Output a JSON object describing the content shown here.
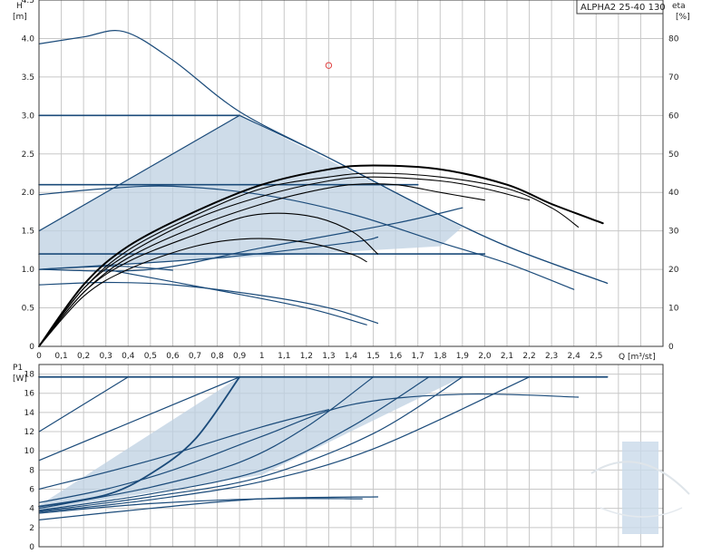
{
  "chart_data": [
    {
      "type": "line",
      "title": "ALPHA2 25-40 130",
      "ylabel": "H",
      "yunit": "[m]",
      "y2label": "eta",
      "y2unit": "[%]",
      "xlabel": "Q [m³/st]",
      "xlim": [
        0,
        2.8
      ],
      "ylim": [
        0,
        4.5
      ],
      "y2lim": [
        0,
        90
      ],
      "x_ticks": [
        "0",
        "0,1",
        "0,2",
        "0,3",
        "0,4",
        "0,5",
        "0,6",
        "0,7",
        "0,8",
        "0,9",
        "1",
        "1,1",
        "1,2",
        "1,3",
        "1,4",
        "1,5",
        "1,6",
        "1,7",
        "1,8",
        "1,9",
        "2,0",
        "2,1",
        "2,2",
        "2,3",
        "2,4",
        "2,5"
      ],
      "y_ticks": [
        "0",
        "0.5",
        "1.0",
        "1.5",
        "2.0",
        "2.5",
        "3.0",
        "3.5",
        "4.0",
        "4.5"
      ],
      "y2_ticks": [
        "0",
        "10",
        "20",
        "30",
        "40",
        "50",
        "60",
        "70",
        "80"
      ],
      "grid": true,
      "colors": {
        "head": "#1b4b7a",
        "efficiency": "#000000",
        "region": "#bdd0e2",
        "marker": "#e04040"
      },
      "marker": {
        "x": 1.3,
        "y": 3.65
      },
      "operating_region": [
        [
          0,
          1.5
        ],
        [
          0.9,
          3.0
        ],
        [
          1.9,
          1.55
        ],
        [
          1.8,
          1.3
        ],
        [
          0,
          1.0
        ]
      ],
      "head_curves": [
        [
          [
            0,
            3.93
          ],
          [
            0.2,
            4.02
          ],
          [
            0.38,
            4.09
          ],
          [
            0.6,
            3.72
          ],
          [
            0.9,
            3.05
          ],
          [
            1.3,
            2.45
          ],
          [
            1.7,
            1.85
          ],
          [
            2.1,
            1.3
          ],
          [
            2.55,
            0.82
          ]
        ],
        [
          [
            0,
            3.0
          ],
          [
            0.9,
            3.0
          ]
        ],
        [
          [
            0.9,
            3.0
          ],
          [
            1.3,
            2.45
          ],
          [
            1.7,
            1.85
          ],
          [
            2.1,
            1.3
          ],
          [
            2.55,
            0.82
          ]
        ],
        [
          [
            0,
            1.5
          ],
          [
            0.9,
            3.0
          ]
        ],
        [
          [
            0,
            2.1
          ],
          [
            1.7,
            2.1
          ]
        ],
        [
          [
            0,
            1.97
          ],
          [
            0.3,
            2.05
          ],
          [
            0.6,
            2.08
          ],
          [
            1.0,
            1.97
          ],
          [
            1.4,
            1.72
          ],
          [
            1.8,
            1.35
          ],
          [
            2.1,
            1.08
          ],
          [
            2.4,
            0.74
          ]
        ],
        [
          [
            0,
            1.0
          ],
          [
            0.5,
            1.0
          ],
          [
            1.0,
            1.28
          ],
          [
            1.6,
            1.6
          ],
          [
            1.9,
            1.8
          ]
        ],
        [
          [
            0,
            1.0
          ],
          [
            0.8,
            1.15
          ],
          [
            1.4,
            1.35
          ],
          [
            1.52,
            1.42
          ]
        ],
        [
          [
            0,
            1.2
          ],
          [
            2.0,
            1.2
          ]
        ],
        [
          [
            0,
            0.8
          ],
          [
            0.3,
            0.83
          ],
          [
            0.6,
            0.8
          ],
          [
            1.0,
            0.66
          ],
          [
            1.3,
            0.5
          ],
          [
            1.52,
            0.3
          ]
        ],
        [
          [
            0.3,
            1.0
          ],
          [
            0.8,
            0.73
          ],
          [
            1.2,
            0.5
          ],
          [
            1.47,
            0.28
          ]
        ],
        [
          [
            0,
            1.0
          ],
          [
            0.35,
            1.04
          ],
          [
            0.6,
            0.99
          ]
        ]
      ],
      "efficiency_curves": [
        [
          [
            0,
            0
          ],
          [
            0.2,
            16
          ],
          [
            0.4,
            26
          ],
          [
            0.7,
            35
          ],
          [
            1.0,
            42
          ],
          [
            1.3,
            46
          ],
          [
            1.5,
            47
          ],
          [
            1.8,
            46
          ],
          [
            2.1,
            42
          ],
          [
            2.3,
            37
          ],
          [
            2.53,
            32
          ]
        ],
        [
          [
            0,
            0
          ],
          [
            0.2,
            15
          ],
          [
            0.4,
            25
          ],
          [
            0.7,
            34
          ],
          [
            1.0,
            41
          ],
          [
            1.3,
            44
          ],
          [
            1.5,
            45
          ],
          [
            1.8,
            44
          ],
          [
            2.1,
            41
          ],
          [
            2.3,
            36
          ],
          [
            2.42,
            31
          ]
        ],
        [
          [
            0,
            0
          ],
          [
            0.2,
            15
          ],
          [
            0.4,
            24
          ],
          [
            0.7,
            33
          ],
          [
            1.0,
            39
          ],
          [
            1.3,
            43
          ],
          [
            1.5,
            44
          ],
          [
            1.8,
            43
          ],
          [
            2.0,
            41
          ],
          [
            2.2,
            38
          ]
        ],
        [
          [
            0,
            0
          ],
          [
            0.2,
            14
          ],
          [
            0.4,
            23
          ],
          [
            0.7,
            31
          ],
          [
            1.0,
            37
          ],
          [
            1.2,
            40
          ],
          [
            1.4,
            42
          ],
          [
            1.6,
            42
          ],
          [
            1.8,
            40
          ],
          [
            2.0,
            38
          ]
        ],
        [
          [
            0,
            0
          ],
          [
            0.2,
            14
          ],
          [
            0.4,
            22
          ],
          [
            0.7,
            29
          ],
          [
            0.95,
            34
          ],
          [
            1.2,
            34
          ],
          [
            1.4,
            30
          ],
          [
            1.52,
            24
          ]
        ],
        [
          [
            0,
            0
          ],
          [
            0.2,
            13
          ],
          [
            0.4,
            20
          ],
          [
            0.7,
            26
          ],
          [
            0.95,
            28
          ],
          [
            1.2,
            27
          ],
          [
            1.4,
            24
          ],
          [
            1.47,
            22
          ]
        ]
      ]
    },
    {
      "type": "line",
      "ylabel": "P1",
      "yunit": "[W]",
      "xlim": [
        0,
        2.8
      ],
      "ylim": [
        0,
        19
      ],
      "y_ticks": [
        "0",
        "2",
        "4",
        "6",
        "8",
        "10",
        "12",
        "14",
        "16",
        "18"
      ],
      "grid": true,
      "max_line": 17.7,
      "operating_region": [
        [
          0,
          4.3
        ],
        [
          0.9,
          17.7
        ],
        [
          1.9,
          17.7
        ],
        [
          1.0,
          7.5
        ],
        [
          0,
          3.8
        ]
      ],
      "power_curves": [
        [
          [
            0,
            4.2
          ],
          [
            0.3,
            5.4
          ],
          [
            0.5,
            7.6
          ],
          [
            0.7,
            11.2
          ],
          [
            0.9,
            17.7
          ]
        ],
        [
          [
            0,
            4.0
          ],
          [
            0.5,
            6.2
          ],
          [
            0.9,
            8.8
          ],
          [
            1.2,
            12.5
          ],
          [
            1.5,
            17.7
          ]
        ],
        [
          [
            0,
            3.8
          ],
          [
            0.5,
            5.5
          ],
          [
            1.0,
            8.0
          ],
          [
            1.4,
            12.5
          ],
          [
            1.75,
            17.7
          ]
        ],
        [
          [
            0,
            3.7
          ],
          [
            0.5,
            5.2
          ],
          [
            1.0,
            7.3
          ],
          [
            1.5,
            11.8
          ],
          [
            1.9,
            17.7
          ]
        ],
        [
          [
            0,
            3.6
          ],
          [
            0.5,
            4.9
          ],
          [
            1.0,
            6.8
          ],
          [
            1.5,
            10.2
          ],
          [
            2.2,
            17.7
          ]
        ],
        [
          [
            0,
            4.6
          ],
          [
            0.3,
            6.0
          ],
          [
            0.6,
            8.0
          ],
          [
            1.0,
            11.5
          ],
          [
            1.4,
            14.8
          ],
          [
            1.9,
            15.9
          ],
          [
            2.42,
            15.6
          ]
        ],
        [
          [
            0,
            2.8
          ],
          [
            0.5,
            4.0
          ],
          [
            1.0,
            5.0
          ],
          [
            1.52,
            5.2
          ]
        ],
        [
          [
            0,
            6.0
          ],
          [
            0.5,
            9.0
          ],
          [
            1.0,
            12.5
          ],
          [
            1.3,
            14.3
          ]
        ],
        [
          [
            0,
            12.0
          ],
          [
            0.4,
            17.7
          ]
        ],
        [
          [
            0,
            9.0
          ],
          [
            0.9,
            17.7
          ]
        ],
        [
          [
            0,
            3.5
          ],
          [
            0.5,
            4.5
          ],
          [
            1.0,
            5.0
          ],
          [
            1.45,
            5.0
          ]
        ]
      ]
    }
  ]
}
